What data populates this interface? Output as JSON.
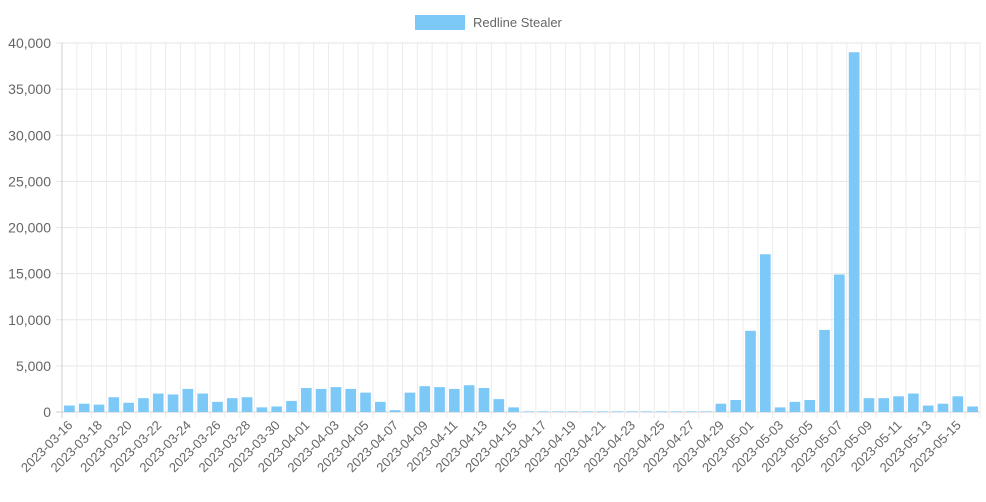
{
  "chart_data": {
    "type": "bar",
    "legend_position": "top-center",
    "grid": true,
    "ylim": [
      0,
      40000
    ],
    "yticks": [
      0,
      5000,
      10000,
      15000,
      20000,
      25000,
      30000,
      35000,
      40000
    ],
    "ytick_labels": [
      "0",
      "5,000",
      "10,000",
      "15,000",
      "20,000",
      "25,000",
      "30,000",
      "35,000",
      "40,000"
    ],
    "categories": [
      "2023-03-16",
      "2023-03-17",
      "2023-03-18",
      "2023-03-19",
      "2023-03-20",
      "2023-03-21",
      "2023-03-22",
      "2023-03-23",
      "2023-03-24",
      "2023-03-25",
      "2023-03-26",
      "2023-03-27",
      "2023-03-28",
      "2023-03-29",
      "2023-03-30",
      "2023-03-31",
      "2023-04-01",
      "2023-04-02",
      "2023-04-03",
      "2023-04-04",
      "2023-04-05",
      "2023-04-06",
      "2023-04-07",
      "2023-04-08",
      "2023-04-09",
      "2023-04-10",
      "2023-04-11",
      "2023-04-12",
      "2023-04-13",
      "2023-04-14",
      "2023-04-15",
      "2023-04-16",
      "2023-04-17",
      "2023-04-18",
      "2023-04-19",
      "2023-04-20",
      "2023-04-21",
      "2023-04-22",
      "2023-04-23",
      "2023-04-24",
      "2023-04-25",
      "2023-04-26",
      "2023-04-27",
      "2023-04-28",
      "2023-04-29",
      "2023-04-30",
      "2023-05-01",
      "2023-05-02",
      "2023-05-03",
      "2023-05-04",
      "2023-05-05",
      "2023-05-06",
      "2023-05-07",
      "2023-05-08",
      "2023-05-09",
      "2023-05-10",
      "2023-05-11",
      "2023-05-12",
      "2023-05-13",
      "2023-05-14",
      "2023-05-15",
      "2023-05-16"
    ],
    "x_tick_labels": [
      "2023-03-16",
      "2023-03-18",
      "2023-03-20",
      "2023-03-22",
      "2023-03-24",
      "2023-03-26",
      "2023-03-28",
      "2023-03-30",
      "2023-04-01",
      "2023-04-03",
      "2023-04-05",
      "2023-04-07",
      "2023-04-09",
      "2023-04-11",
      "2023-04-13",
      "2023-04-15",
      "2023-04-17",
      "2023-04-19",
      "2023-04-21",
      "2023-04-23",
      "2023-04-25",
      "2023-04-27",
      "2023-04-29",
      "2023-05-01",
      "2023-05-03",
      "2023-05-05",
      "2023-05-07",
      "2023-05-09",
      "2023-05-11",
      "2023-05-13",
      "2023-05-15"
    ],
    "series": [
      {
        "name": "Redline Stealer",
        "color": "#7cc9f7",
        "values": [
          700,
          900,
          800,
          1600,
          1000,
          1500,
          2000,
          1900,
          2500,
          2000,
          1100,
          1500,
          1600,
          500,
          600,
          1200,
          2600,
          2500,
          2700,
          2500,
          2100,
          1100,
          200,
          2100,
          2800,
          2700,
          2500,
          2900,
          2600,
          1400,
          500,
          0,
          0,
          0,
          0,
          0,
          0,
          0,
          0,
          0,
          0,
          0,
          0,
          0,
          900,
          1300,
          8800,
          17100,
          500,
          1100,
          1300,
          8900,
          14900,
          39000,
          1500,
          1500,
          1700,
          2000,
          700,
          900,
          1700,
          600
        ]
      }
    ]
  }
}
